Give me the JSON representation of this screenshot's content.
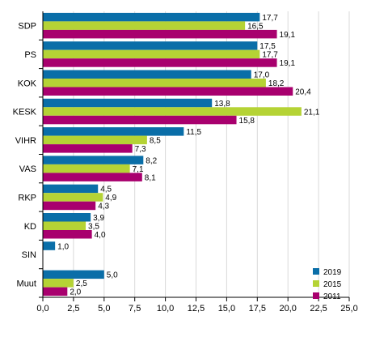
{
  "chart_data": {
    "type": "bar",
    "orientation": "horizontal",
    "categories": [
      "SDP",
      "PS",
      "KOK",
      "KESK",
      "VIHR",
      "VAS",
      "RKP",
      "KD",
      "SIN",
      "Muut"
    ],
    "series": [
      {
        "name": "2019",
        "color": "#0a6ea8",
        "values": [
          17.7,
          17.5,
          17.0,
          13.8,
          11.5,
          8.2,
          4.5,
          3.9,
          1.0,
          5.0
        ],
        "labels": [
          "17,7",
          "17,5",
          "17,0",
          "13,8",
          "11,5",
          "8,2",
          "4,5",
          "3,9",
          "1,0",
          "5,0"
        ]
      },
      {
        "name": "2015",
        "color": "#b5d335",
        "values": [
          16.5,
          17.7,
          18.2,
          21.1,
          8.5,
          7.1,
          4.9,
          3.5,
          null,
          2.5
        ],
        "labels": [
          "16,5",
          "17,7",
          "18,2",
          "21,1",
          "8,5",
          "7,1",
          "4,9",
          "3,5",
          "",
          "2,5"
        ]
      },
      {
        "name": "2011",
        "color": "#a8006e",
        "values": [
          19.1,
          19.1,
          20.4,
          15.8,
          7.3,
          8.1,
          4.3,
          4.0,
          null,
          2.0
        ],
        "labels": [
          "19,1",
          "19,1",
          "20,4",
          "15,8",
          "7,3",
          "8,1",
          "4,3",
          "4,0",
          "",
          "2,0"
        ]
      }
    ],
    "xlim": [
      0,
      25
    ],
    "xticks": [
      0,
      2.5,
      5,
      7.5,
      10,
      12.5,
      15,
      17.5,
      20,
      22.5,
      25
    ],
    "xtick_labels": [
      "0,0",
      "2,5",
      "5,0",
      "7,5",
      "10,0",
      "12,5",
      "15,0",
      "17,5",
      "20,0",
      "22,5",
      "25,0"
    ],
    "grid": "vertical",
    "legend_position": "bottom-right",
    "title": "",
    "xlabel": "",
    "ylabel": ""
  }
}
